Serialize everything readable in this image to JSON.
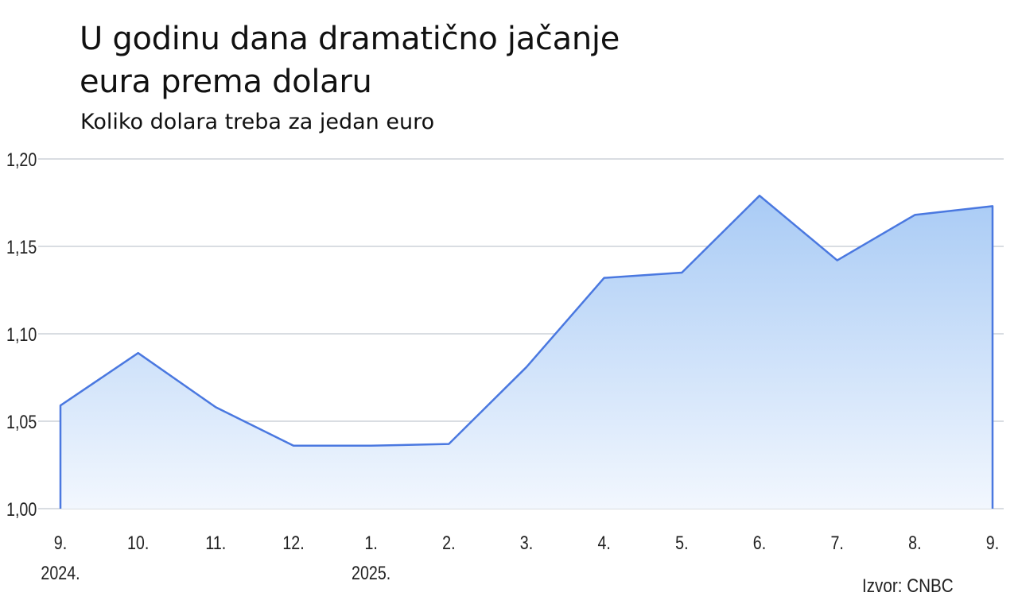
{
  "header": {
    "title_line1": "U godinu dana dramatično jačanje",
    "title_line2": "eura prema dolaru",
    "subtitle": "Koliko dolara treba za jedan euro"
  },
  "source": "Izvor: CNBC",
  "colors": {
    "line": "#4a78e0",
    "fill_top": "#a9cbf5",
    "fill_bottom": "#f2f7fe",
    "grid": "#d9dde2"
  },
  "chart_data": {
    "type": "area",
    "title": "U godinu dana dramatično jačanje eura prema dolaru",
    "subtitle": "Koliko dolara treba za jedan euro",
    "categories": [
      "9.",
      "10.",
      "11.",
      "12.",
      "1.",
      "2.",
      "3.",
      "4.",
      "5.",
      "6.",
      "7.",
      "8.",
      "9."
    ],
    "year_labels": [
      "2024.",
      "",
      "",
      "",
      "2025.",
      "",
      "",
      "",
      "",
      "",
      "",
      "",
      ""
    ],
    "series": [
      {
        "values": [
          1.059,
          1.089,
          1.058,
          1.036,
          1.036,
          1.037,
          1.081,
          1.132,
          1.135,
          1.179,
          1.142,
          1.168,
          1.173
        ]
      }
    ],
    "ylim": [
      1.0,
      1.2
    ],
    "yticks": [
      "1,00",
      "1,05",
      "1,10",
      "1,15",
      "1,20"
    ],
    "ytick_values": [
      1.0,
      1.05,
      1.1,
      1.15,
      1.2
    ],
    "grid": true,
    "xlabel": "",
    "ylabel": ""
  }
}
